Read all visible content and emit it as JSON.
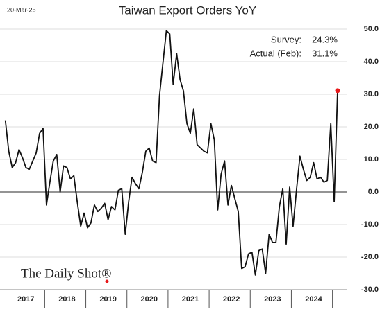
{
  "date_stamp": "20-Mar-25",
  "logo": "The Daily Shot®",
  "chart_data": {
    "type": "line",
    "title": "Taiwan Export Orders YoY",
    "annotations": [
      {
        "label": "Survey:",
        "value_label": "24.3%"
      },
      {
        "label": "Actual (Feb):",
        "value_label": "31.1%"
      }
    ],
    "x": [
      2017,
      2017.083,
      2017.167,
      2017.25,
      2017.333,
      2017.417,
      2017.5,
      2017.583,
      2017.667,
      2017.75,
      2017.833,
      2017.917,
      2018,
      2018.083,
      2018.167,
      2018.25,
      2018.333,
      2018.417,
      2018.5,
      2018.583,
      2018.667,
      2018.75,
      2018.833,
      2018.917,
      2019,
      2019.083,
      2019.167,
      2019.25,
      2019.333,
      2019.417,
      2019.5,
      2019.583,
      2019.667,
      2019.75,
      2019.833,
      2019.917,
      2020,
      2020.083,
      2020.167,
      2020.25,
      2020.333,
      2020.417,
      2020.5,
      2020.583,
      2020.667,
      2020.75,
      2020.833,
      2020.917,
      2021,
      2021.083,
      2021.167,
      2021.25,
      2021.333,
      2021.417,
      2021.5,
      2021.583,
      2021.667,
      2021.75,
      2021.833,
      2021.917,
      2022,
      2022.083,
      2022.167,
      2022.25,
      2022.333,
      2022.417,
      2022.5,
      2022.583,
      2022.667,
      2022.75,
      2022.833,
      2022.917,
      2023,
      2023.083,
      2023.167,
      2023.25,
      2023.333,
      2023.417,
      2023.5,
      2023.583,
      2023.667,
      2023.75,
      2023.833,
      2023.917,
      2024,
      2024.083,
      2024.167,
      2024.25,
      2024.333,
      2024.417,
      2024.5,
      2024.583,
      2024.667,
      2024.75,
      2024.833,
      2024.917,
      2025,
      2025.083
    ],
    "values": [
      22,
      12.5,
      7.5,
      9,
      13,
      10.5,
      7.5,
      7,
      9.5,
      12,
      18,
      19.5,
      -4,
      3,
      9.5,
      11.5,
      0,
      8,
      7.5,
      4,
      5,
      -3,
      -10.5,
      -6.5,
      -11,
      -9.5,
      -4,
      -6,
      -5,
      -3.5,
      -8.5,
      -4.5,
      -5.5,
      0.5,
      1,
      -13,
      -3,
      4.5,
      2.5,
      1,
      6,
      12.5,
      13.5,
      9.5,
      9,
      29.5,
      39.5,
      49.5,
      48.5,
      33,
      42.5,
      34.5,
      31,
      21,
      18,
      25.5,
      14.5,
      13.5,
      12.5,
      12,
      21,
      16,
      -5.5,
      5.5,
      9.5,
      -4,
      2,
      -2,
      -6,
      -23.5,
      -23,
      -19,
      -18.5,
      -25.5,
      -18,
      -17.5,
      -25,
      -13,
      -15.5,
      -15.5,
      -4.5,
      1,
      -16,
      1.5,
      -10.5,
      0.5,
      11,
      7,
      3.5,
      4.5,
      9,
      4,
      4.5,
      3,
      3.5,
      21,
      -3,
      31.1
    ],
    "color": "#111111",
    "highlight_color": "#e8191b",
    "xlim": [
      2016.87,
      2025.32
    ],
    "xticks": [
      {
        "value": 2017.5,
        "label": "2017"
      },
      {
        "value": 2018.5,
        "label": "2018"
      },
      {
        "value": 2019.5,
        "label": "2019"
      },
      {
        "value": 2020.5,
        "label": "2020"
      },
      {
        "value": 2021.5,
        "label": "2021"
      },
      {
        "value": 2022.5,
        "label": "2022"
      },
      {
        "value": 2023.5,
        "label": "2023"
      },
      {
        "value": 2024.5,
        "label": "2024"
      }
    ],
    "ylim": [
      -30,
      50
    ],
    "yticks": [
      {
        "value": -30,
        "label": "-30.0"
      },
      {
        "value": -20,
        "label": "-20.0"
      },
      {
        "value": -10,
        "label": "-10.0"
      },
      {
        "value": 0,
        "label": "0.0"
      },
      {
        "value": 10,
        "label": "10.0"
      },
      {
        "value": 20,
        "label": "20.0"
      },
      {
        "value": 30,
        "label": "30.0"
      },
      {
        "value": 40,
        "label": "40.0"
      },
      {
        "value": 50,
        "label": "50.0"
      }
    ],
    "grid": true
  }
}
